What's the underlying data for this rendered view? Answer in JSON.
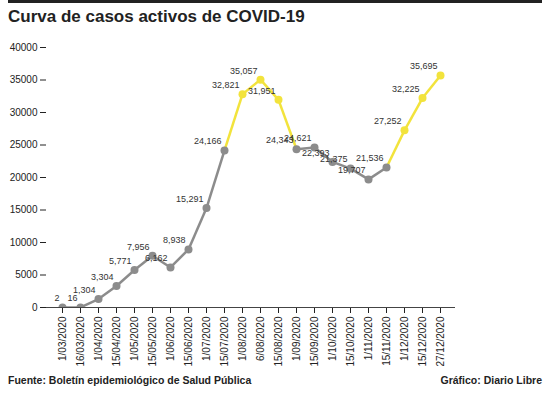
{
  "chart_data": {
    "type": "line",
    "title": "Curva de casos activos de COVID-19",
    "source": "Fuente: Boletín epidemiológico de Salud Pública",
    "credit": "Gráfico: Diario Libre",
    "categories": [
      "1/03/2020",
      "16/03/2020",
      "1/04/2020",
      "15/04/2020",
      "1/05/2020",
      "15/05/2020",
      "1/06/2020",
      "15/06/2020",
      "1/07/2020",
      "15/07/2020",
      "1/08/2020",
      "6/08/2020",
      "15/08/2020",
      "1/09/2020",
      "15/09/2020",
      "1/10/2020",
      "15/10/2020",
      "1/11/2020",
      "15/11/2020",
      "1/12/2020",
      "15/12/2020",
      "27/12/2020"
    ],
    "values": [
      2,
      16,
      1304,
      3304,
      5771,
      7956,
      6162,
      8938,
      15291,
      24166,
      32821,
      35057,
      31951,
      24343,
      24621,
      22393,
      21375,
      19707,
      21536,
      27252,
      32225,
      35695
    ],
    "value_labels": [
      "2",
      "16",
      "1,304",
      "3,304",
      "5,771",
      "7,956",
      "6,162",
      "8,938",
      "15,291",
      "24,166",
      "32,821",
      "35,057",
      "31,951",
      "24,343",
      "24,621",
      "22,393",
      "21,375",
      "19,707",
      "21,536",
      "27,252",
      "32,225",
      "35,695"
    ],
    "color": "#8c8c8c",
    "colors": [
      "#8c8c8c",
      "#8c8c8c",
      "#8c8c8c",
      "#8c8c8c",
      "#8c8c8c",
      "#8c8c8c",
      "#8c8c8c",
      "#8c8c8c",
      "#8c8c8c",
      "#8c8c8c",
      "#f2e33c",
      "#f2e33c",
      "#f2e33c",
      "#8c8c8c",
      "#8c8c8c",
      "#8c8c8c",
      "#8c8c8c",
      "#8c8c8c",
      "#8c8c8c",
      "#f2e33c",
      "#f2e33c",
      "#f2e33c"
    ],
    "ylim": [
      0,
      40000
    ],
    "yticks": [
      0,
      5000,
      10000,
      15000,
      20000,
      25000,
      30000,
      35000,
      40000
    ],
    "grid": false,
    "data_labels": true,
    "marker": "circle"
  }
}
